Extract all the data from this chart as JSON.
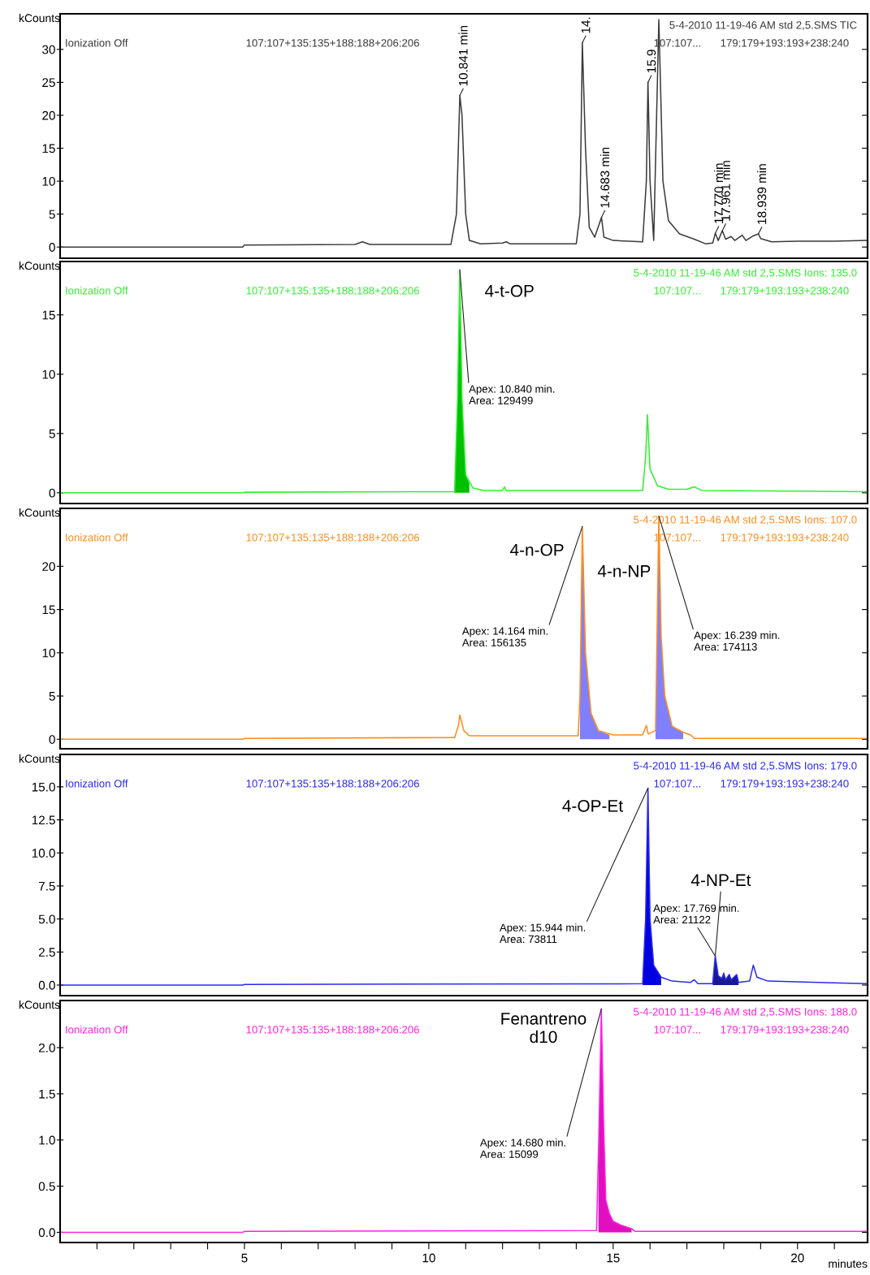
{
  "chart_data": [
    {
      "type": "line",
      "ylabel": "kCounts",
      "xlim": [
        0,
        21.9
      ],
      "ylim": [
        -1.7,
        35.4
      ],
      "yticks": [
        0,
        5,
        10,
        15,
        20,
        25,
        30
      ],
      "tick_labels": "y",
      "series": [
        {
          "color": "#3a3a3a",
          "x": [
            0,
            4.95,
            5.0,
            8.0,
            8.2,
            8.4,
            10.6,
            10.75,
            10.841,
            10.9,
            11.0,
            11.1,
            11.4,
            12.0,
            12.1,
            12.2,
            14.0,
            14.1,
            14.164,
            14.25,
            14.35,
            14.5,
            14.683,
            14.75,
            15.0,
            15.8,
            15.9,
            15.944,
            16.0,
            16.1,
            16.239,
            16.35,
            16.5,
            16.8,
            17.2,
            17.5,
            17.7,
            17.77,
            17.85,
            17.961,
            18.05,
            18.2,
            18.3,
            18.5,
            18.6,
            18.8,
            18.939,
            19.0,
            19.3,
            20.0,
            21.0,
            21.9
          ],
          "values": [
            0,
            0,
            0.3,
            0.4,
            0.8,
            0.4,
            0.4,
            5,
            23,
            20,
            5,
            1,
            0.5,
            0.6,
            0.8,
            0.5,
            0.5,
            5,
            31,
            15,
            3,
            1.5,
            4.5,
            1.5,
            1,
            0.8,
            10,
            25,
            10,
            1,
            34.5,
            10,
            4,
            2,
            1.2,
            0.5,
            0.6,
            2.1,
            1,
            2.5,
            1.2,
            1.6,
            1,
            1.8,
            1,
            1.7,
            2.0,
            1.3,
            0.8,
            0.9,
            0.9,
            1.0
          ]
        }
      ],
      "annotations": [
        "Ionization Off",
        "107:107+135:135+188:188+206:206",
        "5-4-2010 11-19-46 AM std 2,5.SMS TIC",
        "107:107...",
        "179:179+193:193+238:240",
        {
          "text": "10.841 min",
          "x": 10.841,
          "y": 23
        },
        {
          "text": "14.",
          "x": 14.164,
          "y": 31
        },
        {
          "text": "14.683 min",
          "x": 14.683,
          "y": 4.5
        },
        {
          "text": "15.9",
          "x": 15.944,
          "y": 25
        },
        {
          "text": "17.770 min",
          "x": 17.77,
          "y": 2.1
        },
        {
          "text": "17.961 min",
          "x": 17.961,
          "y": 2.5
        },
        {
          "text": "18.939 min",
          "x": 18.939,
          "y": 2.0
        }
      ]
    },
    {
      "type": "line",
      "ylabel": "kCounts",
      "xlim": [
        0,
        21.9
      ],
      "ylim": [
        -0.9,
        19.5
      ],
      "yticks": [
        0,
        5,
        10,
        15
      ],
      "tick_labels": "y",
      "series": [
        {
          "color": "#33ee33",
          "x": [
            0,
            4.95,
            5.0,
            10.7,
            10.78,
            10.84,
            10.9,
            11.0,
            11.2,
            11.5,
            12.0,
            12.05,
            12.1,
            15.8,
            15.88,
            15.93,
            16.0,
            16.2,
            16.5,
            17.0,
            17.2,
            17.4,
            21.9
          ],
          "values": [
            0,
            0,
            0.05,
            0.1,
            8,
            18.8,
            8,
            1.5,
            0.4,
            0.2,
            0.2,
            0.5,
            0.2,
            0.2,
            3,
            6.6,
            2,
            0.6,
            0.3,
            0.3,
            0.5,
            0.2,
            0.1
          ]
        },
        {
          "type": "area",
          "color": "#00c000",
          "x": [
            10.7,
            10.78,
            10.84,
            10.9,
            11.0,
            11.1
          ],
          "values": [
            0.1,
            8,
            18.8,
            8,
            1.5,
            0.8
          ]
        }
      ],
      "annotations": [
        "Ionization Off",
        "107:107+135:135+188:188+206:206",
        "5-4-2010 11-19-46 AM std 2,5.SMS Ions: 135.0",
        "107:107...",
        "179:179+193:193+238:240",
        {
          "text": "4-t-OP",
          "x": 10.84,
          "y": 18.8
        },
        {
          "text": "Apex: 10.840 min.\nArea: 129499",
          "x": 10.84,
          "y": 18.8
        }
      ]
    },
    {
      "type": "line",
      "ylabel": "kCounts",
      "xlim": [
        0,
        21.9
      ],
      "ylim": [
        -1.1,
        26.7
      ],
      "yticks": [
        0,
        5,
        10,
        15,
        20
      ],
      "tick_labels": "y",
      "series": [
        {
          "color": "#ff8c1a",
          "x": [
            0,
            4.95,
            5.0,
            10.7,
            10.8,
            10.84,
            10.95,
            11.1,
            14.05,
            14.1,
            14.164,
            14.25,
            14.4,
            14.6,
            15.0,
            15.8,
            15.9,
            15.95,
            16.15,
            16.239,
            16.3,
            16.4,
            16.6,
            16.9,
            17.1,
            17.2,
            21.9
          ],
          "values": [
            0,
            0,
            0.1,
            0.2,
            1.5,
            2.8,
            1,
            0.4,
            0.4,
            5,
            24.6,
            10,
            3,
            1,
            0.5,
            0.5,
            1.6,
            0.6,
            1,
            25.8,
            12,
            5,
            1.5,
            0.8,
            0.5,
            0.1,
            0.1
          ]
        },
        {
          "type": "area",
          "color": "#8080ff",
          "x": [
            14.1,
            14.164,
            14.25,
            14.4,
            14.6,
            14.9
          ],
          "values": [
            5,
            24.6,
            10,
            3,
            1,
            0.5
          ]
        },
        {
          "type": "area",
          "color": "#8080ff",
          "x": [
            16.15,
            16.239,
            16.3,
            16.4,
            16.6,
            16.9
          ],
          "values": [
            1,
            25.8,
            12,
            5,
            1.5,
            0.8
          ]
        }
      ],
      "annotations": [
        "Ionization Off",
        "107:107+135:135+188:188+206:206",
        "5-4-2010 11-19-46 AM std 2,5.SMS Ions: 107.0",
        "107:107...",
        "179:179+193:193+238:240",
        {
          "text": "4-n-OP",
          "x": 14.164,
          "y": 24.6
        },
        {
          "text": "Apex: 14.164 min.\nArea: 156135",
          "x": 14.164,
          "y": 24.6
        },
        {
          "text": "4-n-NP",
          "x": 16.239,
          "y": 25.8
        },
        {
          "text": "Apex: 16.239 min.\nArea: 174113",
          "x": 16.239,
          "y": 25.8
        }
      ]
    },
    {
      "type": "line",
      "ylabel": "kCounts",
      "xlim": [
        0,
        21.9
      ],
      "ylim": [
        -0.8,
        17.45
      ],
      "yticks": [
        {
          "value": 0,
          "label": "0.0"
        },
        {
          "value": 2.5,
          "label": "2.5"
        },
        {
          "value": 5,
          "label": "5.0"
        },
        {
          "value": 7.5,
          "label": "7.5"
        },
        {
          "value": 10,
          "label": "10.0"
        },
        {
          "value": 12.5,
          "label": "12.5"
        },
        {
          "value": 15,
          "label": "15.0"
        }
      ],
      "tick_labels": "y",
      "series": [
        {
          "color": "#2a2aee",
          "x": [
            0,
            4.95,
            5.0,
            15.8,
            15.88,
            15.944,
            16.0,
            16.1,
            16.3,
            16.6,
            17.1,
            17.2,
            17.3,
            17.7,
            17.769,
            17.85,
            17.95,
            18.0,
            18.05,
            18.15,
            18.2,
            18.35,
            18.4,
            18.7,
            18.8,
            18.9,
            19.2,
            21.9
          ],
          "values": [
            0,
            0,
            0.05,
            0.1,
            5,
            14.9,
            5,
            1.5,
            0.6,
            0.3,
            0.2,
            0.4,
            0.1,
            0.1,
            2.2,
            0.7,
            0.5,
            0.9,
            0.4,
            0.8,
            0.4,
            0.8,
            0.2,
            0.3,
            1.5,
            0.6,
            0.3,
            0.1
          ]
        },
        {
          "type": "area",
          "color": "#0000e0",
          "x": [
            15.8,
            15.88,
            15.944,
            16.0,
            16.1,
            16.3
          ],
          "values": [
            0.1,
            5,
            14.9,
            5,
            1.5,
            0.6
          ]
        },
        {
          "type": "area",
          "color": "#1a1a90",
          "x": [
            17.7,
            17.769,
            17.85,
            17.95,
            18.0,
            18.05,
            18.15,
            18.2,
            18.35,
            18.4
          ],
          "values": [
            0.1,
            2.2,
            0.7,
            0.5,
            0.9,
            0.4,
            0.8,
            0.4,
            0.8,
            0.2
          ]
        }
      ],
      "annotations": [
        "Ionization Off",
        "107:107+135:135+188:188+206:206",
        "5-4-2010 11-19-46 AM std 2,5.SMS Ions: 179.0",
        "107:107...",
        "179:179+193:193+238:240",
        {
          "text": "4-OP-Et",
          "x": 15.944,
          "y": 14.9
        },
        {
          "text": "Apex: 15.944 min.\nArea: 73811",
          "x": 15.944,
          "y": 14.9
        },
        {
          "text": "4-NP-Et",
          "x": 17.769,
          "y": 2.2
        },
        {
          "text": "Apex: 17.769 min.\nArea: 21122",
          "x": 17.769,
          "y": 2.2
        }
      ]
    },
    {
      "type": "line",
      "ylabel": "kCounts",
      "xlabel": "minutes",
      "xlim": [
        0,
        21.9
      ],
      "ylim": [
        -0.11,
        2.51
      ],
      "xticks": [
        {
          "value": 1,
          "label": null
        },
        {
          "value": 2,
          "label": null
        },
        {
          "value": 3,
          "label": null
        },
        {
          "value": 4,
          "label": null
        },
        5,
        {
          "value": 6,
          "label": null
        },
        {
          "value": 7,
          "label": null
        },
        {
          "value": 8,
          "label": null
        },
        {
          "value": 9,
          "label": null
        },
        10,
        {
          "value": 11,
          "label": null
        },
        {
          "value": 12,
          "label": null
        },
        {
          "value": 13,
          "label": null
        },
        {
          "value": 14,
          "label": null
        },
        15,
        {
          "value": 16,
          "label": null
        },
        {
          "value": 17,
          "label": null
        },
        {
          "value": 18,
          "label": null
        },
        {
          "value": 19,
          "label": null
        },
        20,
        {
          "value": 21,
          "label": null
        }
      ],
      "yticks": [
        {
          "value": 0,
          "label": "0.0"
        },
        {
          "value": 0.5,
          "label": "0.5"
        },
        {
          "value": 1,
          "label": "1.0"
        },
        {
          "value": 1.5,
          "label": "1.5"
        },
        {
          "value": 2,
          "label": "2.0"
        }
      ],
      "series": [
        {
          "color": "#ff22dd",
          "x": [
            0,
            4.95,
            5.0,
            14.55,
            14.62,
            14.68,
            14.74,
            14.8,
            14.9,
            15.0,
            15.2,
            15.5,
            15.6,
            21.9
          ],
          "values": [
            0,
            0,
            0.01,
            0.02,
            1.2,
            2.42,
            1.2,
            0.35,
            0.2,
            0.12,
            0.08,
            0.04,
            0.01,
            0.01
          ]
        },
        {
          "type": "area",
          "color": "#e010c0",
          "x": [
            14.6,
            14.62,
            14.68,
            14.74,
            14.8,
            14.9,
            15.0,
            15.2,
            15.5
          ],
          "values": [
            0.5,
            1.2,
            2.42,
            1.2,
            0.35,
            0.2,
            0.12,
            0.08,
            0.04
          ]
        }
      ],
      "annotations": [
        "Ionization Off",
        "107:107+135:135+188:188+206:206",
        "5-4-2010 11-19-46 AM std 2,5.SMS Ions: 188.0",
        "107:107...",
        "179:179+193:193+238:240",
        {
          "text": "Fenantreno\nd10",
          "x": 14.68,
          "y": 2.42
        },
        {
          "text": "Apex: 14.680 min.\nArea: 15099",
          "x": 14.68,
          "y": 2.42
        }
      ]
    }
  ]
}
